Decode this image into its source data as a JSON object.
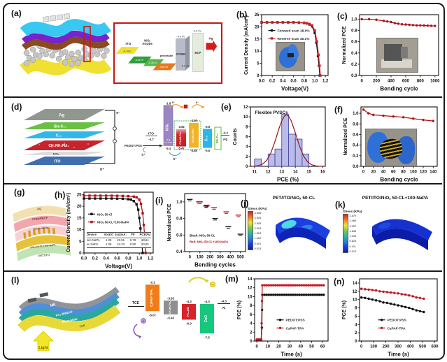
{
  "panels": {
    "a": "(a)",
    "b": "(b)",
    "c": "(c)",
    "d": "(d)",
    "e": "(e)",
    "f": "(f)",
    "g": "(g)",
    "h": "(h)",
    "i": "(i)",
    "j": "(j)",
    "k": "(k)",
    "l": "(l)",
    "m": "(m)",
    "n": "(n)"
  },
  "panel_a": {
    "inset": {
      "ito": "ITO",
      "ito_ev": "-4.7eV",
      "niox": "NiOₓ",
      "agqds": "AGQDs",
      "niox_ev1": "-5.25 eV",
      "niox_ev2": "-5.35 eV",
      "perovskite": "perovskite",
      "perovskite_ev": "-5.81 eV",
      "pcbm": "PCBM",
      "pcbm_top": "-4.0 eV",
      "pcbm_bot": "-6.1 eV",
      "bcp": "BCP",
      "bcp_top": "-3.5 eV",
      "ag": "Ag"
    }
  },
  "panel_d": {
    "stack": {
      "ag": "Ag",
      "bis": "Bis-C₆₀",
      "c60": "C₆₀",
      "mapi": "CH₃NH₃PbI₃",
      "niox": "NiOₓ",
      "ito": "ITO",
      "e": "e⁻",
      "h": "h⁺"
    },
    "energy": {
      "pedot": "PEDOT:PSS",
      "ito": "ITO",
      "ito_ev": "-4.7",
      "niox": "NiOₓ",
      "niox_top": "-1.8",
      "niox_mid": "-5.1",
      "niox_bot": "-5.4",
      "mapi": "CH₃NH₃PbI₃",
      "mapi_top": "-3.92",
      "mapi_bot": "-5.47",
      "mapbr": "CH₃NH₃PbBr₃",
      "mapbr_top": "-3.36",
      "mapbr_bot": "-5.58",
      "c60": "C₆₀",
      "c60_top": "-3.9",
      "c60_bot": "-5.6",
      "bis": "Bis-C₆₀",
      "ag": "Ag",
      "ag_ev": "-4.4",
      "e": "e⁻",
      "h": "h⁺"
    }
  },
  "panel_g": {
    "layers": [
      "Ag",
      "PCBM/BCP",
      "Perovskite",
      "NiOₓ 50-CL+100-NaPA",
      "PET/ITO"
    ]
  },
  "panel_h": {
    "table": {
      "headers": [
        "Device",
        "Voc(V)",
        "Jsc(mA cm⁻²)",
        "FF",
        "PCE(%)"
      ],
      "rows": [
        [
          "w/o NaPA",
          "1.08",
          "23.91",
          "0.78",
          "19.64"
        ],
        [
          "w/ NaPA",
          "1.08",
          "24.23",
          "0.80",
          "20.05"
        ]
      ]
    }
  },
  "panel_j": {
    "title": "PET/ITO/NiOₓ 50-CL",
    "colorbar": {
      "label": "Stress (KPa)",
      "values": [
        "3.506",
        "3.005",
        "2.505",
        "2.004",
        "1.503",
        "1.002",
        "0.501",
        "0.013"
      ]
    }
  },
  "panel_k": {
    "title": "PET/ITO/NiOₓ 50-CL+100-NaPA",
    "colorbar": {
      "label": "Stress (KPa)",
      "values": [
        "2.879",
        "2.468",
        "2.057",
        "1.645",
        "1.234",
        "0.823",
        "0.411",
        "0.013"
      ]
    }
  },
  "panel_l": {
    "device": {
      "layers": [
        "ME",
        "PC₆₁BM/ZnO",
        "Perovskite",
        "TCE"
      ],
      "light": "Light"
    },
    "energy": {
      "tce": "TCE",
      "czpaf": "CzPAF-TPA",
      "czpaf_top": "-2.2",
      "czpaf_bot": "-5.07",
      "mapi": "CH₃NH₃PbI₃",
      "mapi_top": "-3.93",
      "mapi_bot": "-5.43",
      "pcbm": "PC₆₁BM",
      "pcbm_top": "-4.3",
      "pcbm_bot": "-6.0",
      "zno": "ZnO",
      "zno_top": "-4.3",
      "zno_bot": "-7.5",
      "al": "Al",
      "al_ev": "-4.3",
      "minus": "−",
      "plus": "+"
    }
  },
  "chart_data": [
    {
      "panel": "b",
      "type": "line",
      "xlabel": "Voltage(V)",
      "ylabel": "Current Density (mA/cm²)",
      "xlim": [
        0,
        1.25
      ],
      "ylim": [
        0,
        25
      ],
      "xticks": [
        0,
        0.2,
        0.4,
        0.6,
        0.8,
        1.0,
        1.2
      ],
      "xtick_labels": [
        "0.0",
        "0.2",
        "0.4",
        "0.6",
        "0.8",
        "1.0",
        "1.2"
      ],
      "yticks": [
        0,
        5,
        10,
        15,
        20,
        25
      ],
      "series": [
        {
          "name": "Forward scan 18.0%",
          "color": "#111111",
          "marker": "square",
          "x": [
            0,
            0.1,
            0.2,
            0.3,
            0.4,
            0.5,
            0.6,
            0.7,
            0.8,
            0.85,
            0.9,
            0.95,
            1.0,
            1.03,
            1.06,
            1.08,
            1.095
          ],
          "y": [
            21.8,
            21.8,
            21.8,
            21.8,
            21.8,
            21.8,
            21.8,
            21.7,
            21.6,
            21.4,
            21.0,
            20.2,
            17.5,
            13.5,
            8.0,
            4.0,
            0
          ]
        },
        {
          "name": "Reverse scan 18.1%",
          "color": "#cc2127",
          "marker": "square",
          "x": [
            0,
            0.1,
            0.2,
            0.3,
            0.4,
            0.5,
            0.6,
            0.7,
            0.8,
            0.85,
            0.9,
            0.95,
            1.0,
            1.04,
            1.07,
            1.09,
            1.105
          ],
          "y": [
            21.9,
            21.9,
            21.9,
            21.9,
            21.9,
            21.9,
            21.9,
            21.8,
            21.7,
            21.5,
            21.2,
            20.6,
            18.5,
            14.0,
            8.5,
            4.0,
            0
          ]
        }
      ],
      "legend": {
        "x": 0.1,
        "y": 0.26,
        "dy": 0.13,
        "size": 4.8
      }
    },
    {
      "panel": "c",
      "type": "line",
      "xlabel": "Bending cycle",
      "ylabel": "Normalized PCE",
      "xlim": [
        -30,
        1050
      ],
      "ylim": [
        0,
        1.08
      ],
      "xticks": [
        0,
        200,
        400,
        600,
        800,
        1000
      ],
      "yticks": [
        0,
        0.2,
        0.4,
        0.6,
        0.8,
        1.0
      ],
      "ytick_labels": [
        "0.0",
        "0.2",
        "0.4",
        "0.6",
        "0.8",
        "1.0"
      ],
      "series": [
        {
          "name": "",
          "color": "#b01118",
          "marker": "circle",
          "x": [
            0,
            100,
            200,
            300,
            350,
            400,
            450,
            500,
            550,
            600,
            650,
            700,
            750,
            800,
            850,
            900,
            950,
            1000
          ],
          "y": [
            1.0,
            1.0,
            0.99,
            0.97,
            0.96,
            0.95,
            0.93,
            0.92,
            0.91,
            0.905,
            0.9,
            0.895,
            0.89,
            0.89,
            0.888,
            0.885,
            0.882,
            0.88
          ]
        }
      ]
    },
    {
      "panel": "e",
      "type": "histogram",
      "xlabel": "PCE (%)",
      "ylabel": "Counts",
      "xlim": [
        10.7,
        16.2
      ],
      "ylim": [
        0,
        12
      ],
      "xticks": [
        11,
        12,
        13,
        14,
        15,
        16
      ],
      "yticks": [
        0,
        2,
        4,
        6,
        8,
        10,
        12
      ],
      "bars": {
        "color": "#b9bce8",
        "edge": "#3c3c99",
        "width": 0.5,
        "centers": [
          11.25,
          12.25,
          12.75,
          13.25,
          13.75,
          14.25,
          14.75
        ],
        "values": [
          1.5,
          2.5,
          3.5,
          10.5,
          6.5,
          5.5,
          2.5
        ]
      },
      "series": [
        {
          "name": "",
          "color": "#9b1b21",
          "marker": "none",
          "x": [
            10.8,
            11,
            11.3,
            11.6,
            11.9,
            12.2,
            12.5,
            12.8,
            13,
            13.2,
            13.35,
            13.5,
            13.7,
            14,
            14.3,
            14.6,
            14.9,
            15.2,
            15.5,
            15.8,
            16.1
          ],
          "y": [
            0.01,
            0.04,
            0.14,
            0.46,
            1.22,
            2.7,
            4.98,
            7.64,
            9.18,
            10.16,
            10.4,
            10.16,
            9.18,
            6.76,
            4.14,
            2.11,
            0.9,
            0.32,
            0.09,
            0.02,
            0.01
          ]
        }
      ],
      "annotations": [
        {
          "x": 0.06,
          "y": 0.12,
          "text": "Flexible PVSCs",
          "color": "#111111",
          "size": 6.5
        }
      ]
    },
    {
      "panel": "f",
      "type": "line",
      "xlabel": "Bending cycle",
      "ylabel": "Normalized PCE",
      "xlim": [
        -5,
        148
      ],
      "ylim": [
        0,
        1.12
      ],
      "xticks": [
        0,
        20,
        40,
        60,
        80,
        100,
        120,
        140
      ],
      "yticks": [
        0,
        0.2,
        0.4,
        0.6,
        0.8,
        1.0
      ],
      "ytick_labels": [
        "0.0",
        "0.2",
        "0.4",
        "0.6",
        "0.8",
        "1.0"
      ],
      "series": [
        {
          "name": "",
          "color": "#b01118",
          "marker": "circle",
          "x": [
            0,
            10,
            20,
            40,
            60,
            80,
            100,
            120,
            140
          ],
          "y": [
            1.07,
            1.0,
            0.97,
            0.955,
            0.94,
            0.925,
            0.9,
            0.875,
            0.855
          ]
        }
      ]
    },
    {
      "panel": "h",
      "type": "line",
      "xlabel": "Voltage(V)",
      "ylabel": "Current Density (mA/cm²)",
      "xlim": [
        0,
        1.25
      ],
      "ylim": [
        0,
        26
      ],
      "xticks": [
        0,
        0.2,
        0.4,
        0.6,
        0.8,
        1.0,
        1.2
      ],
      "xtick_labels": [
        "0.0",
        "0.2",
        "0.4",
        "0.6",
        "0.8",
        "1.0",
        "1.2"
      ],
      "yticks": [
        0,
        5,
        10,
        15,
        20,
        25
      ],
      "series": [
        {
          "name": "NiOₓ 50-Cl",
          "color": "#111111",
          "marker": "square",
          "x": [
            0,
            0.1,
            0.2,
            0.3,
            0.4,
            0.5,
            0.6,
            0.7,
            0.8,
            0.85,
            0.9,
            0.95,
            0.98,
            1.0,
            1.02,
            1.04,
            1.06
          ],
          "y": [
            23.3,
            23.3,
            23.3,
            23.3,
            23.3,
            23.3,
            23.25,
            23.2,
            23.0,
            22.8,
            22.2,
            20.8,
            18.5,
            15,
            10.5,
            5,
            0
          ]
        },
        {
          "name": "NiOₓ 50-CL+100-NaPA",
          "color": "#b01118",
          "marker": "square",
          "x": [
            0,
            0.1,
            0.2,
            0.3,
            0.4,
            0.5,
            0.6,
            0.7,
            0.8,
            0.9,
            0.95,
            1.0,
            1.03,
            1.06,
            1.08,
            1.1,
            1.115
          ],
          "y": [
            24.5,
            24.5,
            24.5,
            24.5,
            24.5,
            24.5,
            24.45,
            24.4,
            24.3,
            24.1,
            23.8,
            22.8,
            21,
            17,
            12,
            6,
            0
          ]
        }
      ],
      "legend": {
        "x": 0.06,
        "y": 0.36,
        "dy": 0.13,
        "size": 4.4
      }
    },
    {
      "panel": "i",
      "type": "scatter",
      "xlabel": "Bending cycles",
      "ylabel": "Normalized PCE",
      "xlim": [
        -50,
        550
      ],
      "ylim": [
        0.4,
        1.1
      ],
      "xticks": [
        0,
        100,
        200,
        300,
        400,
        500
      ],
      "yticks": [
        0.4,
        0.6,
        0.8,
        1.0
      ],
      "ytick_labels": [
        "0.4",
        "0.6",
        "0.8",
        "1.0"
      ],
      "series": [
        {
          "name": "",
          "color": "#111111",
          "marker": "hdash",
          "line": false,
          "x": [
            0,
            100,
            160,
            250,
            380,
            500
          ],
          "y": [
            1.03,
            1.0,
            0.95,
            0.8,
            0.7,
            0.61
          ]
        },
        {
          "name": "",
          "color": "#b01118",
          "marker": "hdash",
          "line": false,
          "x": [
            90,
            170,
            240,
            360,
            480
          ],
          "y": [
            1.0,
            0.96,
            0.93,
            0.88,
            0.84
          ]
        }
      ],
      "annotations": [
        {
          "x": 0.08,
          "y": 0.74,
          "text": "Black: NiOₓ 50-CL",
          "color": "#111111",
          "size": 4.3
        },
        {
          "x": 0.08,
          "y": 0.85,
          "text": "Red: NiOₓ 50-CL+100-NaPA",
          "color": "#b01118",
          "size": 4.3
        }
      ]
    },
    {
      "panel": "m",
      "type": "line",
      "xlabel": "Time (s)",
      "ylabel": "PCE (%)",
      "xlim": [
        -2,
        65
      ],
      "ylim": [
        0,
        14
      ],
      "xticks": [
        0,
        10,
        20,
        30,
        40,
        50,
        60
      ],
      "yticks": [
        0,
        2,
        4,
        6,
        8,
        10,
        12,
        14
      ],
      "series": [
        {
          "name": "PEDOT:PSS",
          "color": "#111111",
          "marker": "circle",
          "x": [
            0,
            1,
            2,
            3,
            4,
            4.6,
            4.8,
            5,
            7,
            9,
            11,
            13,
            15,
            17,
            19,
            21,
            23,
            25,
            27,
            29,
            31,
            33,
            35,
            37,
            39,
            41,
            43,
            45,
            47,
            49,
            51,
            53,
            55,
            57,
            59,
            61
          ],
          "y": [
            0.25,
            0.25,
            0.25,
            0.25,
            0.25,
            3,
            7,
            10.4,
            10.4,
            10.4,
            10.4,
            10.4,
            10.4,
            10.4,
            10.4,
            10.4,
            10.4,
            10.4,
            10.4,
            10.4,
            10.4,
            10.4,
            10.4,
            10.4,
            10.4,
            10.4,
            10.4,
            10.4,
            10.4,
            10.4,
            10.4,
            10.4,
            10.4,
            10.4,
            10.4,
            10.4
          ]
        },
        {
          "name": "CzPAF-TPA",
          "color": "#c01820",
          "marker": "circle",
          "x": [
            0,
            1,
            2,
            3,
            4,
            4.4,
            4.7,
            5,
            7,
            9,
            11,
            13,
            15,
            17,
            19,
            21,
            23,
            25,
            27,
            29,
            31,
            33,
            35,
            37,
            39,
            41,
            43,
            45,
            47,
            49,
            51,
            53,
            55,
            57,
            59,
            61
          ],
          "y": [
            0.35,
            0.35,
            0.35,
            0.35,
            0.35,
            4,
            9,
            12.55,
            12.55,
            12.55,
            12.55,
            12.55,
            12.55,
            12.55,
            12.55,
            12.55,
            12.55,
            12.55,
            12.55,
            12.55,
            12.55,
            12.55,
            12.55,
            12.55,
            12.55,
            12.55,
            12.55,
            12.55,
            12.55,
            12.55,
            12.55,
            12.55,
            12.55,
            12.55,
            12.55,
            12.55
          ]
        }
      ],
      "legend": {
        "x": 0.3,
        "y": 0.66,
        "dy": 0.13,
        "size": 4.8
      }
    },
    {
      "panel": "n",
      "type": "line",
      "xlabel": "Time (s)",
      "ylabel": "PCE (%)",
      "xlim": [
        -15,
        620
      ],
      "ylim": [
        0,
        15
      ],
      "xticks": [
        0,
        100,
        200,
        300,
        400,
        500,
        600
      ],
      "yticks": [
        0,
        2,
        4,
        6,
        8,
        10,
        12,
        14
      ],
      "series": [
        {
          "name": "PEDOT:PSS",
          "color": "#111111",
          "marker": "circle",
          "x": [
            0,
            30,
            60,
            90,
            120,
            150,
            180,
            210,
            240,
            270,
            300,
            330,
            360,
            390,
            420,
            450,
            480,
            510
          ],
          "y": [
            10.5,
            10.4,
            10.2,
            10.0,
            9.8,
            9.6,
            9.3,
            9.2,
            9.0,
            8.8,
            8.6,
            8.4,
            8.2,
            8.0,
            7.7,
            7.4,
            7.2,
            7.0
          ]
        },
        {
          "name": "CzPAF-TPA",
          "color": "#c01820",
          "marker": "circle",
          "x": [
            0,
            30,
            60,
            90,
            120,
            150,
            180,
            210,
            240,
            270,
            300,
            330,
            360,
            390,
            420,
            450,
            480,
            510
          ],
          "y": [
            12.6,
            12.5,
            12.4,
            12.3,
            12.2,
            12.0,
            11.9,
            11.8,
            11.7,
            11.6,
            11.5,
            11.3,
            11.2,
            11.0,
            10.8,
            10.5,
            10.4,
            10.2
          ]
        }
      ],
      "legend": {
        "x": 0.24,
        "y": 0.66,
        "dy": 0.13,
        "size": 4.8
      }
    }
  ]
}
